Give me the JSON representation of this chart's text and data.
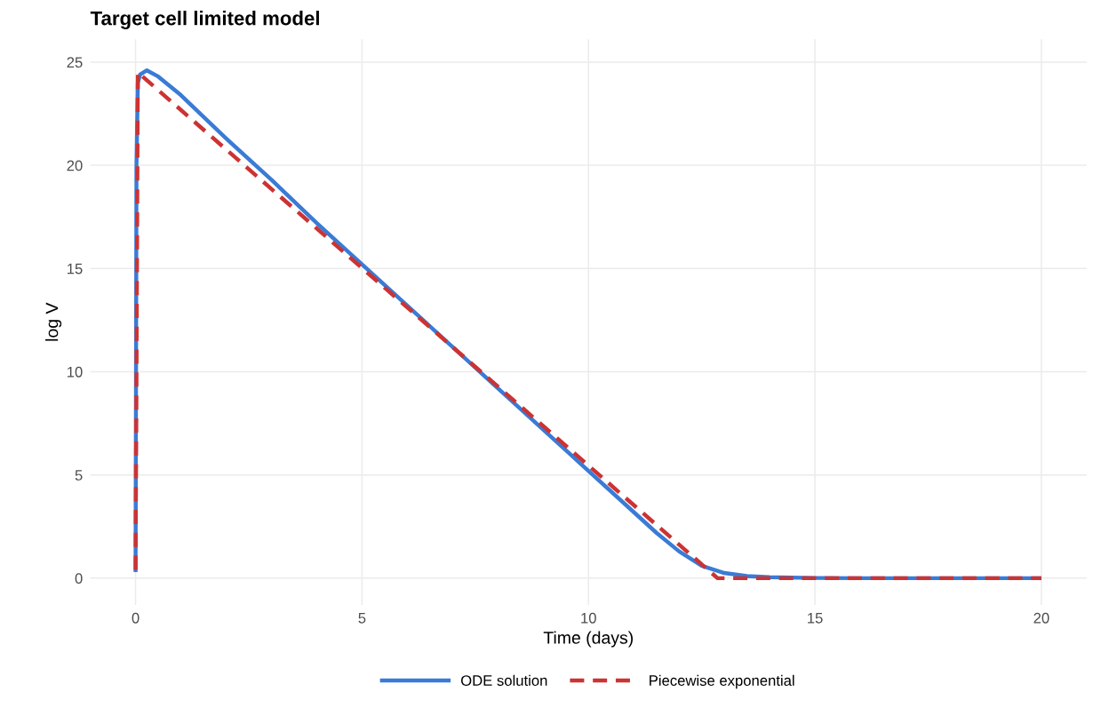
{
  "chart_data": {
    "type": "line",
    "title": "Target cell limited model",
    "xlabel": "Time (days)",
    "ylabel": "log V",
    "xlim": [
      -1,
      21
    ],
    "ylim": [
      -1.3,
      26.1
    ],
    "xticks": [
      0,
      5,
      10,
      15,
      20
    ],
    "yticks": [
      0,
      5,
      10,
      15,
      20,
      25
    ],
    "grid": true,
    "legend": "bottom",
    "series": [
      {
        "name": "ODE solution",
        "color": "#3a7bd5",
        "line_style": "solid",
        "x": [
          0,
          0.01,
          0.02,
          0.05,
          0.1,
          0.25,
          0.5,
          1,
          2,
          3,
          4,
          5,
          6,
          7,
          8,
          9,
          10,
          11,
          11.5,
          12,
          12.5,
          13,
          13.5,
          14,
          15,
          16,
          18,
          20
        ],
        "values": [
          0.3,
          10,
          20,
          24,
          24.4,
          24.6,
          24.3,
          23.4,
          21.3,
          19.3,
          17.2,
          15.2,
          13.2,
          11.2,
          9.2,
          7.2,
          5.2,
          3.2,
          2.2,
          1.3,
          0.6,
          0.25,
          0.1,
          0.05,
          0.01,
          0,
          0,
          0
        ]
      },
      {
        "name": "Piecewise exponential",
        "color": "#cc3333",
        "line_style": "dashed",
        "x": [
          0,
          0.05,
          12.85,
          20
        ],
        "values": [
          0.4,
          24.5,
          0,
          0
        ]
      }
    ]
  }
}
